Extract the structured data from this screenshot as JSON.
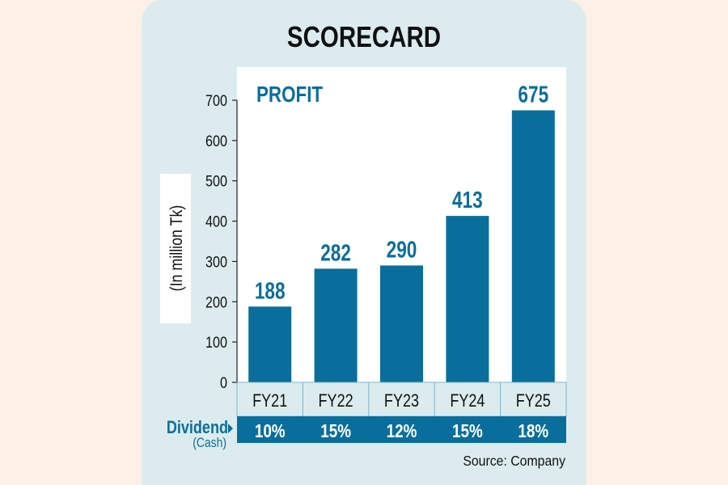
{
  "chart_data": {
    "type": "bar",
    "title": "SCORECARD",
    "subtitle": "PROFIT",
    "ylabel": "(In million Tk)",
    "xlabel": "",
    "ylim": [
      0,
      700
    ],
    "yticks": [
      0,
      100,
      200,
      300,
      400,
      500,
      600,
      700
    ],
    "categories": [
      "FY21",
      "FY22",
      "FY23",
      "FY24",
      "FY25"
    ],
    "values": [
      188,
      282,
      290,
      413,
      675
    ],
    "data_labels": [
      "188",
      "282",
      "290",
      "413",
      "675"
    ],
    "dividend": {
      "label": "Dividend",
      "sublabel": "(Cash)",
      "values": [
        "10%",
        "15%",
        "12%",
        "15%",
        "18%"
      ]
    },
    "source": "Source: Company",
    "grid": false,
    "colors": {
      "bar": "#0a6e9c",
      "label": "#0a6e9c",
      "card": "#dcecee",
      "background": "#fdf0e6"
    }
  }
}
